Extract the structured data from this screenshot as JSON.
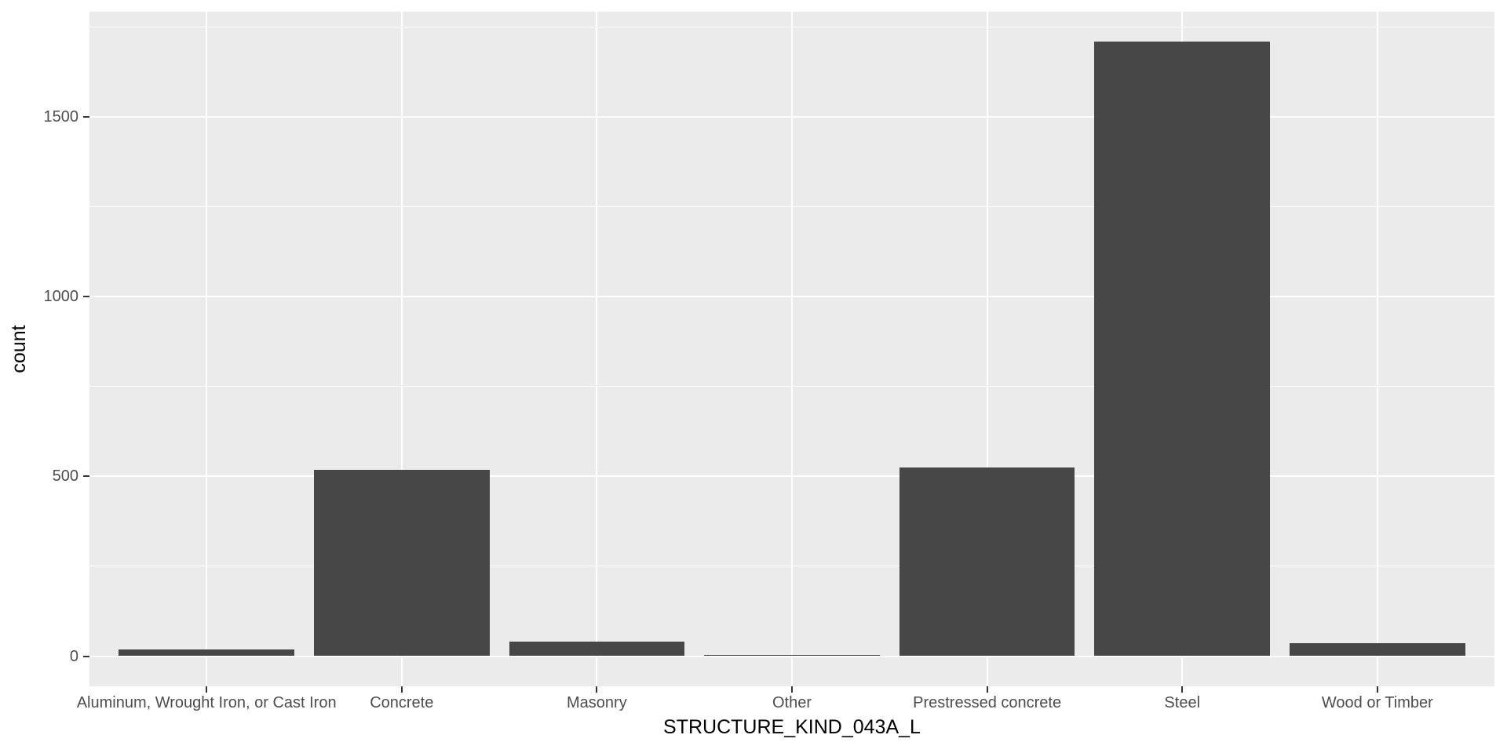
{
  "chart_data": {
    "type": "bar",
    "title": "",
    "xlabel": "STRUCTURE_KIND_043A_L",
    "ylabel": "count",
    "categories": [
      "Aluminum, Wrought Iron, or Cast Iron",
      "Concrete",
      "Masonry",
      "Other",
      "Prestressed concrete",
      "Steel",
      "Wood or Timber"
    ],
    "values": [
      18,
      518,
      40,
      4,
      525,
      1710,
      36
    ],
    "yticks": [
      0,
      500,
      1000,
      1500
    ],
    "ytick_labels": [
      "0",
      "500",
      "1000",
      "1500"
    ],
    "yticks_minor": [
      250,
      750,
      1250,
      1750
    ],
    "ylim": [
      0,
      1795
    ],
    "grid": "on",
    "legend": "none",
    "colors": {
      "bar_fill": "#474747",
      "panel_background": "#EBEBEB",
      "gridline": "#FFFFFF",
      "tick_label": "#4D4D4D",
      "tick_mark": "#333333",
      "axis_title": "#000000",
      "figure_background": "#FFFFFF"
    }
  }
}
